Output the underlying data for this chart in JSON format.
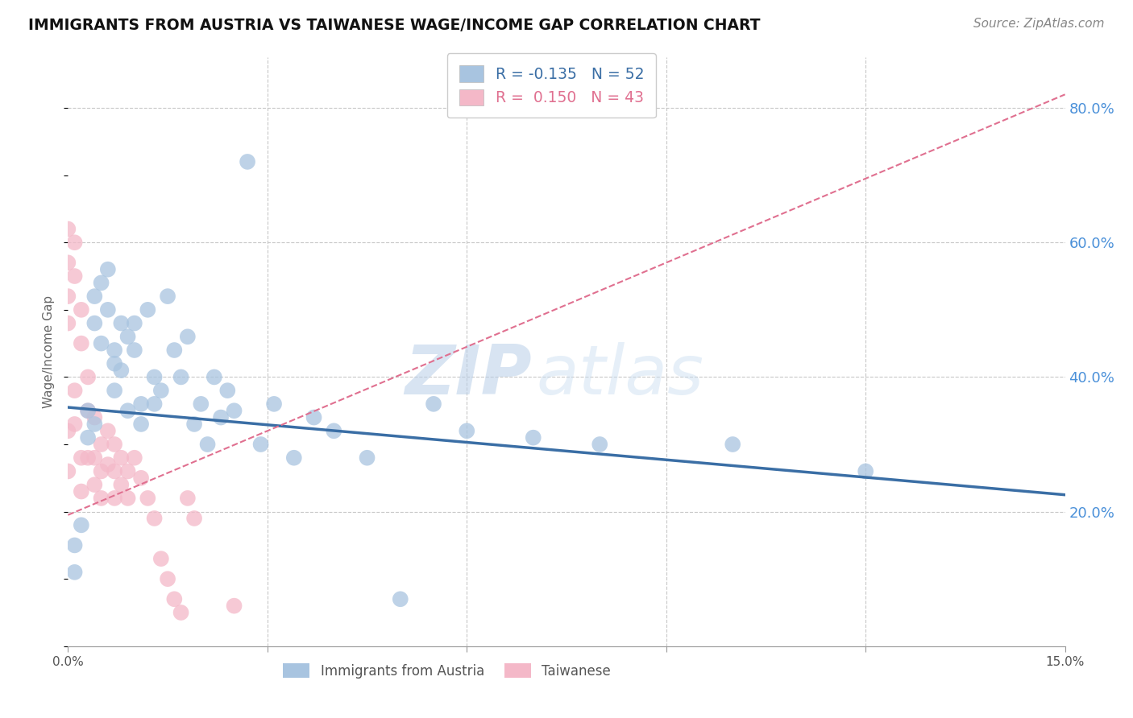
{
  "title": "IMMIGRANTS FROM AUSTRIA VS TAIWANESE WAGE/INCOME GAP CORRELATION CHART",
  "source": "Source: ZipAtlas.com",
  "ylabel": "Wage/Income Gap",
  "xmin": 0.0,
  "xmax": 0.15,
  "ymin": 0.0,
  "ymax": 0.875,
  "yticks": [
    0.2,
    0.4,
    0.6,
    0.8
  ],
  "ytick_labels": [
    "20.0%",
    "40.0%",
    "60.0%",
    "80.0%"
  ],
  "xtick_vals": [
    0.0,
    0.03,
    0.06,
    0.09,
    0.12,
    0.15
  ],
  "blue_R": "-0.135",
  "blue_N": "52",
  "pink_R": "0.150",
  "pink_N": "43",
  "blue_color": "#a8c4e0",
  "pink_color": "#f4b8c8",
  "blue_line_color": "#3a6ea5",
  "pink_line_color": "#e07090",
  "grid_color": "#c8c8c8",
  "watermark_zip": "ZIP",
  "watermark_atlas": "atlas",
  "blue_line_x0": 0.0,
  "blue_line_y0": 0.355,
  "blue_line_x1": 0.15,
  "blue_line_y1": 0.225,
  "pink_line_x0": 0.0,
  "pink_line_y0": 0.195,
  "pink_line_x1": 0.15,
  "pink_line_y1": 0.82,
  "blue_points_x": [
    0.001,
    0.001,
    0.002,
    0.003,
    0.003,
    0.004,
    0.004,
    0.004,
    0.005,
    0.005,
    0.006,
    0.006,
    0.007,
    0.007,
    0.007,
    0.008,
    0.008,
    0.009,
    0.009,
    0.01,
    0.01,
    0.011,
    0.011,
    0.012,
    0.013,
    0.013,
    0.014,
    0.015,
    0.016,
    0.017,
    0.018,
    0.019,
    0.02,
    0.021,
    0.022,
    0.023,
    0.024,
    0.025,
    0.027,
    0.029,
    0.031,
    0.034,
    0.037,
    0.04,
    0.045,
    0.05,
    0.055,
    0.06,
    0.07,
    0.08,
    0.1,
    0.12
  ],
  "blue_points_y": [
    0.15,
    0.11,
    0.18,
    0.35,
    0.31,
    0.52,
    0.48,
    0.33,
    0.54,
    0.45,
    0.56,
    0.5,
    0.42,
    0.38,
    0.44,
    0.48,
    0.41,
    0.46,
    0.35,
    0.48,
    0.44,
    0.36,
    0.33,
    0.5,
    0.4,
    0.36,
    0.38,
    0.52,
    0.44,
    0.4,
    0.46,
    0.33,
    0.36,
    0.3,
    0.4,
    0.34,
    0.38,
    0.35,
    0.72,
    0.3,
    0.36,
    0.28,
    0.34,
    0.32,
    0.28,
    0.07,
    0.36,
    0.32,
    0.31,
    0.3,
    0.3,
    0.26
  ],
  "pink_points_x": [
    0.0,
    0.0,
    0.0,
    0.0,
    0.0,
    0.0,
    0.001,
    0.001,
    0.001,
    0.001,
    0.002,
    0.002,
    0.002,
    0.002,
    0.003,
    0.003,
    0.003,
    0.004,
    0.004,
    0.004,
    0.005,
    0.005,
    0.005,
    0.006,
    0.006,
    0.007,
    0.007,
    0.007,
    0.008,
    0.008,
    0.009,
    0.009,
    0.01,
    0.011,
    0.012,
    0.013,
    0.014,
    0.015,
    0.016,
    0.017,
    0.018,
    0.019,
    0.025
  ],
  "pink_points_y": [
    0.62,
    0.57,
    0.52,
    0.48,
    0.32,
    0.26,
    0.6,
    0.55,
    0.38,
    0.33,
    0.5,
    0.45,
    0.28,
    0.23,
    0.4,
    0.35,
    0.28,
    0.34,
    0.28,
    0.24,
    0.3,
    0.26,
    0.22,
    0.32,
    0.27,
    0.3,
    0.26,
    0.22,
    0.28,
    0.24,
    0.26,
    0.22,
    0.28,
    0.25,
    0.22,
    0.19,
    0.13,
    0.1,
    0.07,
    0.05,
    0.22,
    0.19,
    0.06
  ]
}
